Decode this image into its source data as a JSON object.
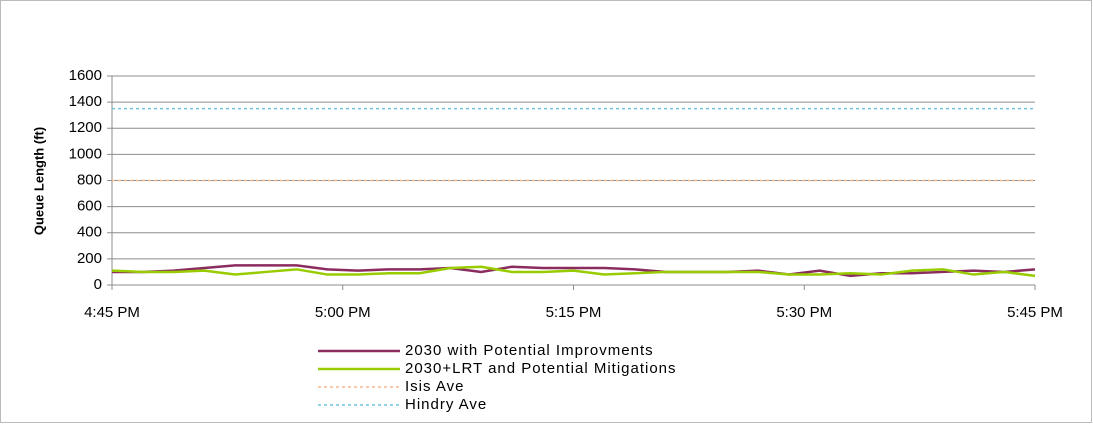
{
  "chart_data": {
    "type": "line",
    "y_label": "Queue Length (ft)",
    "x": [
      0,
      2,
      4,
      6,
      8,
      10,
      12,
      14,
      16,
      18,
      20,
      22,
      24,
      26,
      28,
      30,
      32,
      34,
      36,
      38,
      40,
      42,
      44,
      46,
      48,
      50,
      52,
      54,
      56,
      58,
      60
    ],
    "xlim": [
      0,
      60
    ],
    "xticks": [
      {
        "value": 0,
        "label": "4:45 PM"
      },
      {
        "value": 15,
        "label": "5:00 PM"
      },
      {
        "value": 30,
        "label": "5:15 PM"
      },
      {
        "value": 45,
        "label": "5:30 PM"
      },
      {
        "value": 60,
        "label": "5:45 PM"
      }
    ],
    "ylim": [
      0,
      1600
    ],
    "yticks": [
      0,
      200,
      400,
      600,
      800,
      1000,
      1200,
      1400,
      1600
    ],
    "grid": true,
    "legend": "bottom",
    "series": [
      {
        "name": "2030 with Potential Improvments",
        "color": "#8b2c5e",
        "style": "solid",
        "values": [
          100,
          100,
          110,
          130,
          150,
          150,
          150,
          120,
          110,
          120,
          120,
          130,
          100,
          140,
          130,
          130,
          130,
          120,
          100,
          100,
          100,
          110,
          80,
          110,
          70,
          90,
          90,
          100,
          110,
          100,
          120
        ]
      },
      {
        "name": "2030+LRT and Potential Mitigations",
        "color": "#99cc00",
        "style": "solid",
        "values": [
          110,
          100,
          100,
          110,
          80,
          100,
          120,
          80,
          80,
          90,
          90,
          130,
          140,
          100,
          100,
          110,
          80,
          90,
          100,
          100,
          100,
          100,
          80,
          80,
          90,
          80,
          110,
          120,
          80,
          100,
          70
        ]
      },
      {
        "name": "Isis Ave",
        "color": "#f7b98c",
        "style": "dotted",
        "values": [
          800,
          800,
          800,
          800,
          800,
          800,
          800,
          800,
          800,
          800,
          800,
          800,
          800,
          800,
          800,
          800,
          800,
          800,
          800,
          800,
          800,
          800,
          800,
          800,
          800,
          800,
          800,
          800,
          800,
          800,
          800
        ]
      },
      {
        "name": "Hindry Ave",
        "color": "#70c4df",
        "style": "dotted",
        "values": [
          1350,
          1350,
          1350,
          1350,
          1350,
          1350,
          1350,
          1350,
          1350,
          1350,
          1350,
          1350,
          1350,
          1350,
          1350,
          1350,
          1350,
          1350,
          1350,
          1350,
          1350,
          1350,
          1350,
          1350,
          1350,
          1350,
          1350,
          1350,
          1350,
          1350,
          1350
        ]
      }
    ]
  }
}
